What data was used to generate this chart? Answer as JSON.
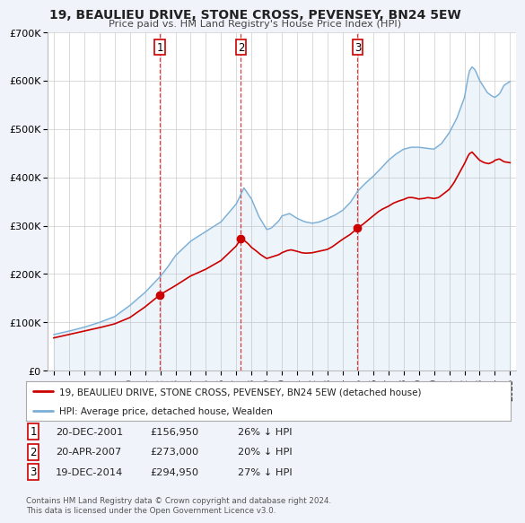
{
  "title": "19, BEAULIEU DRIVE, STONE CROSS, PEVENSEY, BN24 5EW",
  "subtitle": "Price paid vs. HM Land Registry's House Price Index (HPI)",
  "legend_line1": "19, BEAULIEU DRIVE, STONE CROSS, PEVENSEY, BN24 5EW (detached house)",
  "legend_line2": "HPI: Average price, detached house, Wealden",
  "sale_color": "#cc0000",
  "hpi_color": "#7aaed6",
  "transactions": [
    {
      "label": "1",
      "date_str": "20-DEC-2001",
      "price": "£156,950",
      "pct": "26% ↓ HPI",
      "year": 2001.97
    },
    {
      "label": "2",
      "date_str": "20-APR-2007",
      "price": "£273,000",
      "pct": "20% ↓ HPI",
      "year": 2007.3
    },
    {
      "label": "3",
      "date_str": "19-DEC-2014",
      "price": "£294,950",
      "pct": "27% ↓ HPI",
      "year": 2014.97
    }
  ],
  "transaction_prices": [
    156950,
    273000,
    294950
  ],
  "footnote1": "Contains HM Land Registry data © Crown copyright and database right 2024.",
  "footnote2": "This data is licensed under the Open Government Licence v3.0.",
  "xlim": [
    1994.6,
    2025.4
  ],
  "ylim": [
    0,
    700000
  ],
  "yticks": [
    0,
    100000,
    200000,
    300000,
    400000,
    500000,
    600000,
    700000
  ],
  "ytick_labels": [
    "£0",
    "£100K",
    "£200K",
    "£300K",
    "£400K",
    "£500K",
    "£600K",
    "£700K"
  ],
  "xticks": [
    1995,
    1996,
    1997,
    1998,
    1999,
    2000,
    2001,
    2002,
    2003,
    2004,
    2005,
    2006,
    2007,
    2008,
    2009,
    2010,
    2011,
    2012,
    2013,
    2014,
    2015,
    2016,
    2017,
    2018,
    2019,
    2020,
    2021,
    2022,
    2023,
    2024,
    2025
  ],
  "background_color": "#f0f4fa",
  "plot_bg_color": "#ffffff",
  "grid_color": "#cccccc",
  "hpi_anchors": [
    [
      1995.0,
      75000
    ],
    [
      1996.0,
      82000
    ],
    [
      1997.0,
      90000
    ],
    [
      1998.0,
      100000
    ],
    [
      1999.0,
      112000
    ],
    [
      2000.0,
      135000
    ],
    [
      2001.0,
      162000
    ],
    [
      2002.0,
      195000
    ],
    [
      2002.5,
      215000
    ],
    [
      2003.0,
      238000
    ],
    [
      2004.0,
      268000
    ],
    [
      2005.0,
      288000
    ],
    [
      2006.0,
      308000
    ],
    [
      2007.0,
      345000
    ],
    [
      2007.5,
      378000
    ],
    [
      2008.0,
      355000
    ],
    [
      2008.5,
      318000
    ],
    [
      2009.0,
      292000
    ],
    [
      2009.3,
      295000
    ],
    [
      2009.8,
      310000
    ],
    [
      2010.0,
      320000
    ],
    [
      2010.5,
      325000
    ],
    [
      2011.0,
      315000
    ],
    [
      2011.5,
      308000
    ],
    [
      2012.0,
      305000
    ],
    [
      2012.5,
      308000
    ],
    [
      2013.0,
      315000
    ],
    [
      2013.5,
      322000
    ],
    [
      2014.0,
      332000
    ],
    [
      2014.5,
      348000
    ],
    [
      2015.0,
      372000
    ],
    [
      2015.5,
      388000
    ],
    [
      2016.0,
      402000
    ],
    [
      2016.5,
      418000
    ],
    [
      2017.0,
      435000
    ],
    [
      2017.5,
      448000
    ],
    [
      2018.0,
      458000
    ],
    [
      2018.5,
      462000
    ],
    [
      2019.0,
      462000
    ],
    [
      2019.5,
      460000
    ],
    [
      2020.0,
      458000
    ],
    [
      2020.5,
      470000
    ],
    [
      2021.0,
      492000
    ],
    [
      2021.5,
      522000
    ],
    [
      2022.0,
      565000
    ],
    [
      2022.3,
      618000
    ],
    [
      2022.5,
      628000
    ],
    [
      2022.7,
      622000
    ],
    [
      2023.0,
      600000
    ],
    [
      2023.3,
      585000
    ],
    [
      2023.5,
      575000
    ],
    [
      2023.8,
      568000
    ],
    [
      2024.0,
      565000
    ],
    [
      2024.3,
      572000
    ],
    [
      2024.6,
      590000
    ],
    [
      2025.0,
      598000
    ]
  ],
  "price_anchors": [
    [
      1995.0,
      68000
    ],
    [
      1996.0,
      75000
    ],
    [
      1997.0,
      82000
    ],
    [
      1998.0,
      89000
    ],
    [
      1999.0,
      97000
    ],
    [
      2000.0,
      110000
    ],
    [
      2001.0,
      132000
    ],
    [
      2001.97,
      156950
    ],
    [
      2002.3,
      163000
    ],
    [
      2002.8,
      172000
    ],
    [
      2003.5,
      186000
    ],
    [
      2004.0,
      196000
    ],
    [
      2005.0,
      210000
    ],
    [
      2006.0,
      228000
    ],
    [
      2007.0,
      258000
    ],
    [
      2007.3,
      273000
    ],
    [
      2007.5,
      270000
    ],
    [
      2007.8,
      262000
    ],
    [
      2008.0,
      255000
    ],
    [
      2008.3,
      248000
    ],
    [
      2008.6,
      240000
    ],
    [
      2009.0,
      232000
    ],
    [
      2009.3,
      235000
    ],
    [
      2009.8,
      240000
    ],
    [
      2010.0,
      244000
    ],
    [
      2010.3,
      248000
    ],
    [
      2010.6,
      250000
    ],
    [
      2011.0,
      247000
    ],
    [
      2011.3,
      244000
    ],
    [
      2011.6,
      243000
    ],
    [
      2012.0,
      244000
    ],
    [
      2012.3,
      246000
    ],
    [
      2012.6,
      248000
    ],
    [
      2013.0,
      251000
    ],
    [
      2013.3,
      256000
    ],
    [
      2013.6,
      263000
    ],
    [
      2014.0,
      272000
    ],
    [
      2014.5,
      282000
    ],
    [
      2014.97,
      294950
    ],
    [
      2015.3,
      302000
    ],
    [
      2015.6,
      310000
    ],
    [
      2016.0,
      320000
    ],
    [
      2016.3,
      328000
    ],
    [
      2016.6,
      334000
    ],
    [
      2017.0,
      340000
    ],
    [
      2017.3,
      346000
    ],
    [
      2017.6,
      350000
    ],
    [
      2018.0,
      354000
    ],
    [
      2018.3,
      358000
    ],
    [
      2018.6,
      358000
    ],
    [
      2019.0,
      355000
    ],
    [
      2019.3,
      356000
    ],
    [
      2019.6,
      358000
    ],
    [
      2020.0,
      356000
    ],
    [
      2020.3,
      358000
    ],
    [
      2020.6,
      365000
    ],
    [
      2021.0,
      375000
    ],
    [
      2021.3,
      388000
    ],
    [
      2021.6,
      405000
    ],
    [
      2022.0,
      428000
    ],
    [
      2022.3,
      448000
    ],
    [
      2022.5,
      452000
    ],
    [
      2022.7,
      445000
    ],
    [
      2023.0,
      435000
    ],
    [
      2023.3,
      430000
    ],
    [
      2023.6,
      428000
    ],
    [
      2023.9,
      432000
    ],
    [
      2024.0,
      435000
    ],
    [
      2024.3,
      438000
    ],
    [
      2024.6,
      432000
    ],
    [
      2025.0,
      430000
    ]
  ]
}
